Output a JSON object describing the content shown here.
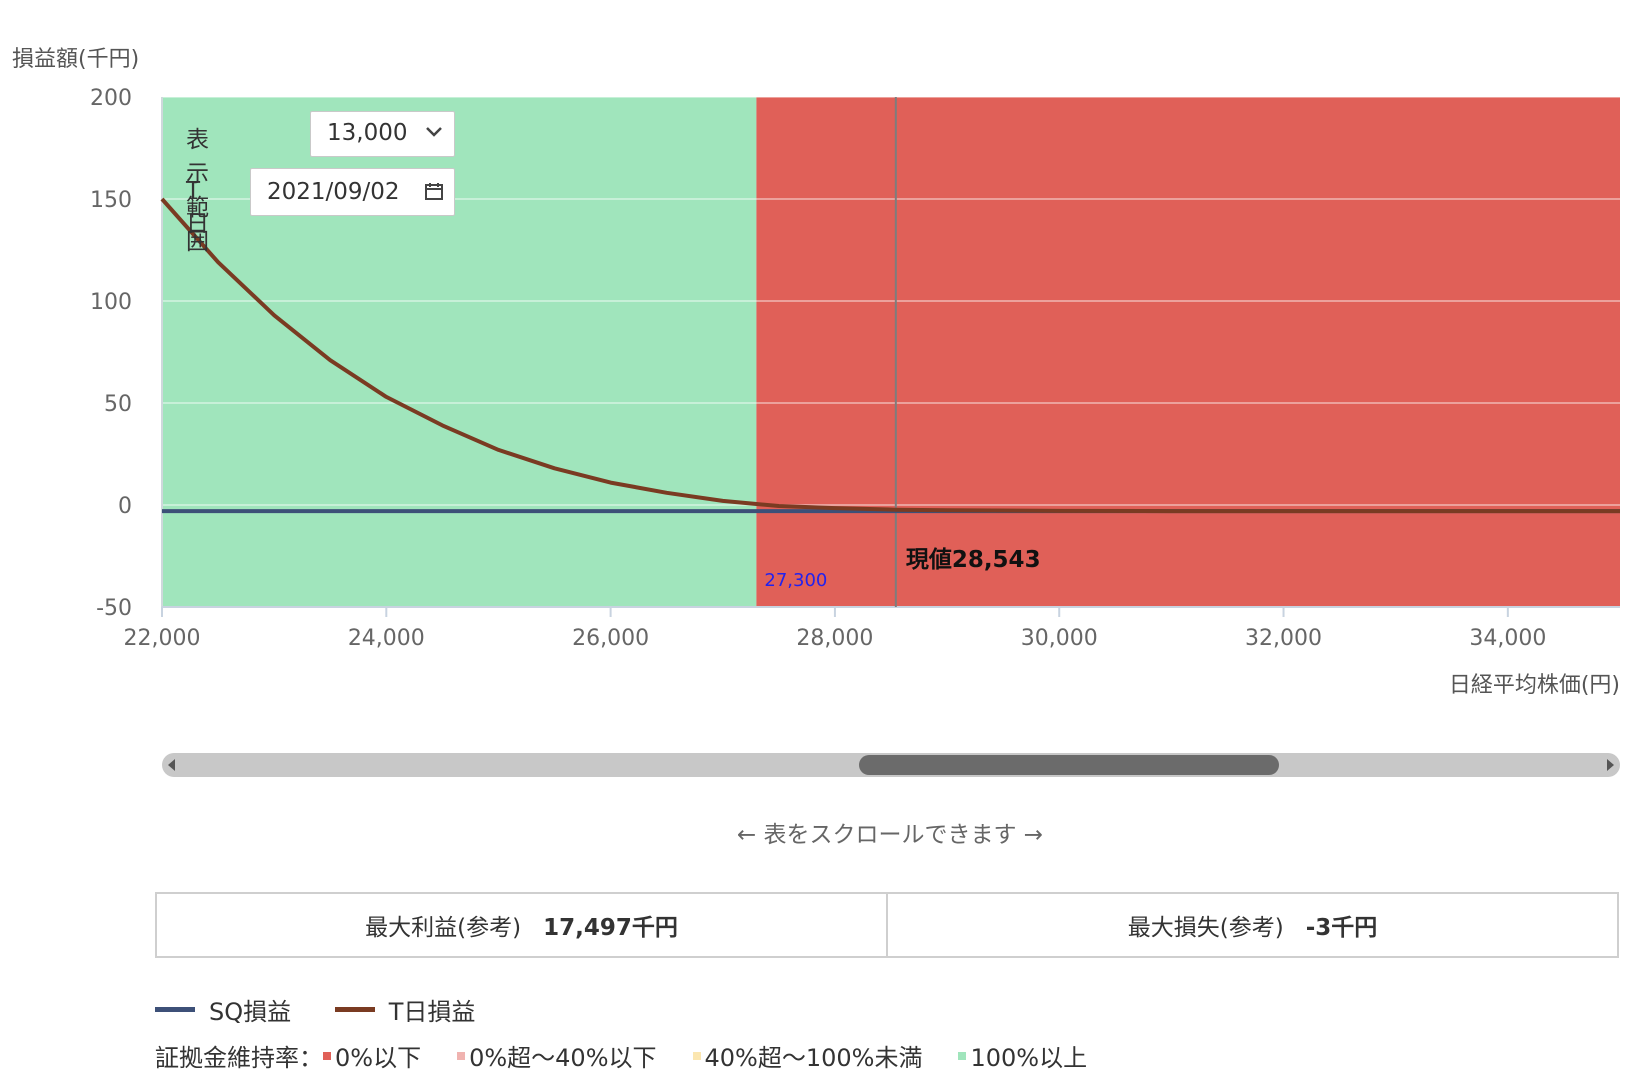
{
  "chart_data": {
    "type": "line",
    "title": "",
    "ylabel": "損益額(千円)",
    "xlabel": "日経平均株価(円)",
    "xlim": [
      22000,
      35000
    ],
    "ylim": [
      -50,
      200
    ],
    "x_ticks": [
      "22,000",
      "24,000",
      "26,000",
      "28,000",
      "30,000",
      "32,000",
      "34,000"
    ],
    "x_tick_values": [
      22000,
      24000,
      26000,
      28000,
      30000,
      32000,
      34000
    ],
    "y_ticks": [
      "200",
      "150",
      "100",
      "50",
      "0",
      "-50"
    ],
    "y_tick_values": [
      200,
      150,
      100,
      50,
      0,
      -50
    ],
    "grid": true,
    "zones": [
      {
        "from": 22000,
        "to": 27300,
        "color": "#a0e5bc",
        "category": "100%以上"
      },
      {
        "from": 27300,
        "to": 35000,
        "color": "#e06058",
        "category": "0%以下"
      }
    ],
    "threshold": {
      "x": 27300,
      "label": "27,300",
      "color": "#2222ee"
    },
    "current": {
      "x": 28543,
      "label": "現値28,543"
    },
    "series": [
      {
        "name": "SQ損益",
        "color": "#3d5078",
        "x": [
          22000,
          35000
        ],
        "y": [
          -3,
          -3
        ]
      },
      {
        "name": "T日損益",
        "color": "#7a3b22",
        "x": [
          22000,
          22500,
          23000,
          23500,
          24000,
          24500,
          25000,
          25500,
          26000,
          26500,
          27000,
          27300,
          27500,
          28000,
          28543,
          29000,
          30000,
          31000,
          32000,
          33000,
          34000,
          35000
        ],
        "y": [
          150,
          119,
          93,
          71,
          53,
          39,
          27,
          18,
          11,
          6,
          2,
          0.5,
          -0.5,
          -1.5,
          -2.3,
          -2.6,
          -2.9,
          -3,
          -3,
          -3,
          -3,
          -3
        ]
      }
    ]
  },
  "controls": {
    "range_label": "表示範囲",
    "range_value": "13,000",
    "date_label": "T日",
    "date_value": "2021/09/02"
  },
  "scroll_hint": "← 表をスクロールできます →",
  "summary": {
    "max_profit_label": "最大利益(参考)",
    "max_profit_value": "17,497千円",
    "max_loss_label": "最大損失(参考)",
    "max_loss_value": "-3千円"
  },
  "legend": {
    "sq_label": "SQ損益",
    "sq_color": "#3d5078",
    "t_label": "T日損益",
    "t_color": "#7a3b22"
  },
  "margin_legend": {
    "title": "証拠金維持率：",
    "items": [
      {
        "label": "0%以下",
        "color": "#e06058"
      },
      {
        "label": "0%超〜40%以下",
        "color": "#f0b3b0"
      },
      {
        "label": "40%超〜100%未満",
        "color": "#fbe6b0"
      },
      {
        "label": "100%以上",
        "color": "#a0e5bc"
      }
    ]
  }
}
